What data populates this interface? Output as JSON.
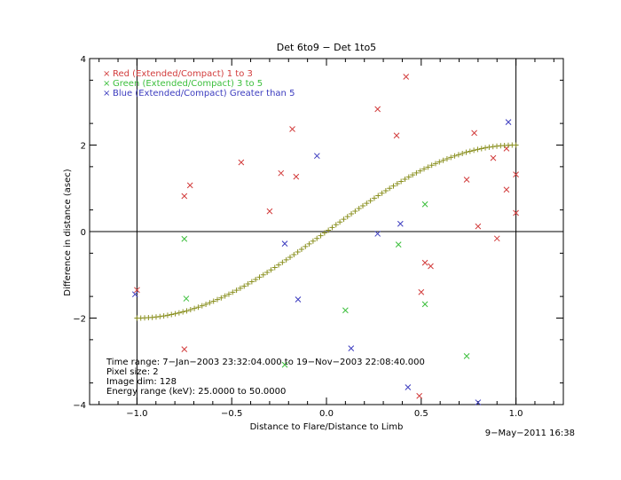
{
  "chart_data": {
    "type": "scatter",
    "title": "Det 6to9 − Det 1to5",
    "xlabel": "Distance to Flare/Distance to Limb",
    "ylabel": "Difference in distance (asec)",
    "xlim": [
      -1.25,
      1.25
    ],
    "ylim": [
      -4,
      4
    ],
    "x_ticks": [
      -1.0,
      -0.5,
      0.0,
      0.5,
      1.0
    ],
    "x_tick_labels": [
      "−1.0",
      "−0.5",
      "0.0",
      "0.5",
      "1.0"
    ],
    "y_ticks": [
      -4,
      -2,
      0,
      2,
      4
    ],
    "y_tick_labels": [
      "−4",
      "−2",
      "0",
      "2",
      "4"
    ],
    "reference_lines": {
      "vertical": [
        -1.0,
        1.0
      ],
      "horizontal": [
        0
      ]
    },
    "series": [
      {
        "name": "Red (Extended/Compact) 1 to 3",
        "color": "#d23c3c",
        "marker": "x",
        "points": [
          [
            -1.0,
            -1.35
          ],
          [
            -0.75,
            0.82
          ],
          [
            -0.72,
            1.07
          ],
          [
            -0.75,
            -2.72
          ],
          [
            -0.45,
            1.6
          ],
          [
            -0.3,
            0.47
          ],
          [
            -0.24,
            1.35
          ],
          [
            -0.18,
            2.37
          ],
          [
            -0.16,
            1.27
          ],
          [
            0.27,
            2.83
          ],
          [
            0.37,
            2.22
          ],
          [
            0.42,
            3.58
          ],
          [
            0.49,
            -3.8
          ],
          [
            0.5,
            -1.4
          ],
          [
            0.52,
            -0.72
          ],
          [
            0.55,
            -0.8
          ],
          [
            0.74,
            1.2
          ],
          [
            0.78,
            2.28
          ],
          [
            0.8,
            0.12
          ],
          [
            0.88,
            1.7
          ],
          [
            0.9,
            -0.16
          ],
          [
            0.95,
            0.97
          ],
          [
            0.95,
            1.92
          ],
          [
            1.0,
            1.32
          ],
          [
            1.0,
            0.43
          ]
        ]
      },
      {
        "name": "Green (Extended/Compact) 3 to 5",
        "color": "#3cbf3c",
        "marker": "x",
        "points": [
          [
            -0.75,
            -0.17
          ],
          [
            -0.74,
            -1.55
          ],
          [
            -0.22,
            -3.08
          ],
          [
            0.1,
            -1.82
          ],
          [
            0.38,
            -0.3
          ],
          [
            0.52,
            0.63
          ],
          [
            0.52,
            -1.68
          ],
          [
            0.74,
            -2.88
          ]
        ]
      },
      {
        "name": "Blue (Extended/Compact) Greater than 5",
        "color": "#3c3cbf",
        "marker": "x",
        "points": [
          [
            -1.01,
            -1.45
          ],
          [
            -0.22,
            -0.28
          ],
          [
            -0.15,
            -1.57
          ],
          [
            -0.05,
            1.75
          ],
          [
            0.13,
            -2.7
          ],
          [
            0.27,
            -0.05
          ],
          [
            0.39,
            0.18
          ],
          [
            0.43,
            -3.6
          ],
          [
            0.8,
            -3.95
          ],
          [
            0.96,
            2.53
          ]
        ]
      },
      {
        "name": "",
        "color": "#8a9020",
        "marker": "+",
        "curve": "2*sin(pi*x/2)",
        "x_range": [
          -1.0,
          1.0
        ],
        "n_points": 100
      }
    ],
    "legend_position": "top-left",
    "annotations": [
      "Time range:  7−Jan−2003 23:32:04.000 to 19−Nov−2003 22:08:40.000",
      "Pixel size: 2",
      "Image dim: 128",
      "Energy range (keV): 25.0000 to 50.0000"
    ],
    "timestamp": "9−May−2011 16:38"
  }
}
